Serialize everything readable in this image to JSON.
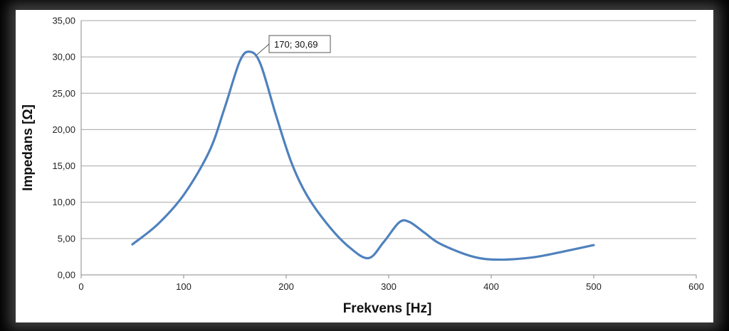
{
  "chart_data": {
    "type": "line",
    "xlabel": "Frekvens [Hz]",
    "ylabel": "Impedans [Ω]",
    "xlim": [
      0,
      600
    ],
    "ylim": [
      0,
      35
    ],
    "x_ticks": [
      "0",
      "100",
      "200",
      "300",
      "400",
      "500",
      "600"
    ],
    "y_ticks": [
      "0,00",
      "5,00",
      "10,00",
      "15,00",
      "20,00",
      "25,00",
      "30,00",
      "35,00"
    ],
    "grid": "horizontal",
    "legend": "none",
    "line_color": "#4f81bd",
    "series": [
      {
        "x": [
          50,
          75,
          100,
          125,
          140,
          155,
          165,
          175,
          190,
          205,
          220,
          240,
          260,
          280,
          295,
          310,
          320,
          335,
          350,
          380,
          405,
          440,
          470,
          500
        ],
        "y": [
          4.2,
          7.0,
          11.0,
          17.0,
          23.0,
          29.5,
          30.7,
          29.0,
          22.0,
          15.5,
          11.0,
          7.0,
          4.0,
          2.3,
          4.5,
          7.2,
          7.3,
          5.8,
          4.3,
          2.6,
          2.1,
          2.4,
          3.2,
          4.1
        ]
      }
    ],
    "annotation": {
      "text": "170; 30,69",
      "x": 170,
      "y": 30.69
    }
  }
}
